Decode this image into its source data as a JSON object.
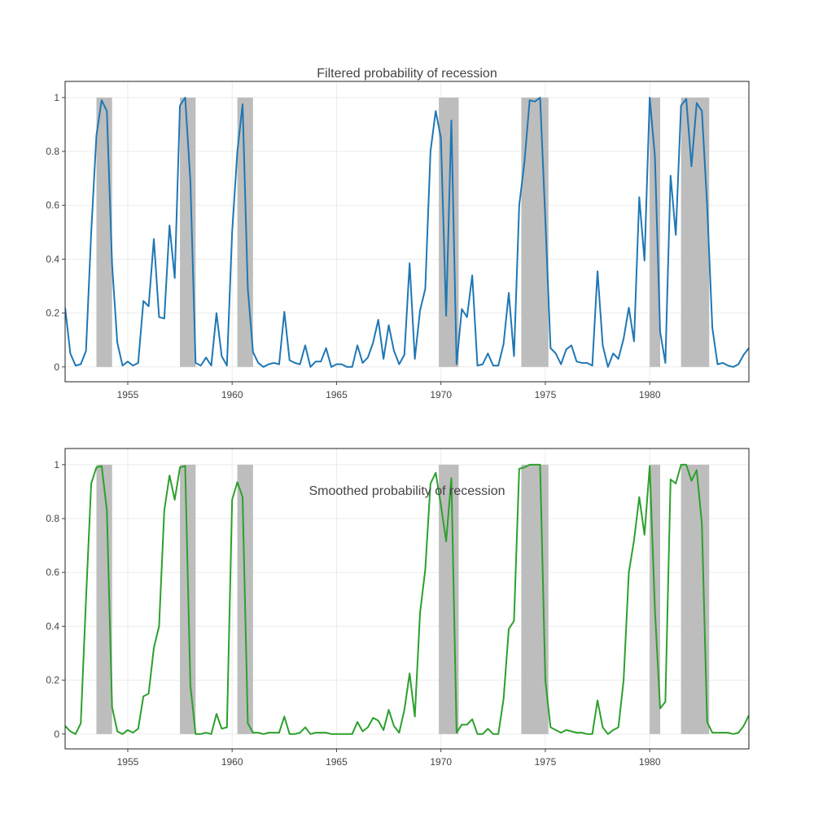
{
  "chart_data": [
    {
      "type": "line",
      "title": "Filtered probability of recession",
      "xlabel": "",
      "ylabel": "",
      "xlim": [
        1952.0,
        1984.75
      ],
      "ylim": [
        -0.055,
        1.06
      ],
      "x_ticks": [
        "1955",
        "1960",
        "1965",
        "1970",
        "1975",
        "1980"
      ],
      "y_ticks": [
        "0",
        "0.2",
        "0.4",
        "0.6",
        "0.8",
        "1"
      ],
      "grid": true,
      "legend": "none",
      "line_color": "#1f77b4",
      "shade_color": "#bdbdbd",
      "recessions": [
        [
          1953.5,
          1954.25
        ],
        [
          1957.5,
          1958.25
        ],
        [
          1960.25,
          1961.0
        ],
        [
          1969.9,
          1970.85
        ],
        [
          1973.85,
          1975.15
        ],
        [
          1980.0,
          1980.5
        ],
        [
          1981.5,
          1982.85
        ]
      ],
      "series": [
        {
          "start": 1952.0,
          "step": 0.25,
          "values": [
            0.22,
            0.05,
            0.005,
            0.01,
            0.06,
            0.5,
            0.86,
            0.99,
            0.95,
            0.38,
            0.09,
            0.005,
            0.02,
            0.005,
            0.015,
            0.245,
            0.225,
            0.475,
            0.185,
            0.18,
            0.525,
            0.33,
            0.97,
            1.0,
            0.69,
            0.015,
            0.005,
            0.035,
            0.005,
            0.2,
            0.04,
            0.005,
            0.5,
            0.8,
            0.975,
            0.29,
            0.055,
            0.015,
            0.0,
            0.01,
            0.015,
            0.01,
            0.205,
            0.025,
            0.015,
            0.01,
            0.08,
            0.0,
            0.02,
            0.02,
            0.07,
            0.0,
            0.01,
            0.01,
            0.0,
            0.0,
            0.08,
            0.015,
            0.035,
            0.09,
            0.175,
            0.03,
            0.155,
            0.06,
            0.01,
            0.045,
            0.385,
            0.03,
            0.21,
            0.29,
            0.8,
            0.95,
            0.85,
            0.19,
            0.915,
            0.01,
            0.215,
            0.185,
            0.34,
            0.005,
            0.01,
            0.05,
            0.005,
            0.005,
            0.085,
            0.275,
            0.04,
            0.6,
            0.76,
            0.99,
            0.985,
            1.0,
            0.55,
            0.07,
            0.05,
            0.01,
            0.065,
            0.08,
            0.02,
            0.015,
            0.015,
            0.005,
            0.355,
            0.08,
            0.0,
            0.05,
            0.03,
            0.105,
            0.22,
            0.095,
            0.63,
            0.395,
            1.0,
            0.78,
            0.13,
            0.015,
            0.71,
            0.49,
            0.97,
            0.995,
            0.745,
            0.98,
            0.95,
            0.6,
            0.145,
            0.01,
            0.015,
            0.005,
            0.0,
            0.01,
            0.045,
            0.07
          ]
        }
      ]
    },
    {
      "type": "line",
      "title": "Smoothed probability of recession",
      "xlabel": "",
      "ylabel": "",
      "xlim": [
        1952.0,
        1984.75
      ],
      "ylim": [
        -0.055,
        1.06
      ],
      "x_ticks": [
        "1955",
        "1960",
        "1965",
        "1970",
        "1975",
        "1980"
      ],
      "y_ticks": [
        "0",
        "0.2",
        "0.4",
        "0.6",
        "0.8",
        "1"
      ],
      "grid": true,
      "legend": "none",
      "line_color": "#2ca02c",
      "shade_color": "#bdbdbd",
      "recessions": [
        [
          1953.5,
          1954.25
        ],
        [
          1957.5,
          1958.25
        ],
        [
          1960.25,
          1961.0
        ],
        [
          1969.9,
          1970.85
        ],
        [
          1973.85,
          1975.15
        ],
        [
          1980.0,
          1980.5
        ],
        [
          1981.5,
          1982.85
        ]
      ],
      "series": [
        {
          "start": 1952.0,
          "step": 0.25,
          "values": [
            0.03,
            0.01,
            0.0,
            0.04,
            0.5,
            0.93,
            0.99,
            0.995,
            0.83,
            0.1,
            0.01,
            0.0,
            0.015,
            0.005,
            0.02,
            0.14,
            0.15,
            0.32,
            0.4,
            0.83,
            0.96,
            0.87,
            0.99,
            0.995,
            0.18,
            0.0,
            0.0,
            0.005,
            0.0,
            0.075,
            0.02,
            0.025,
            0.87,
            0.935,
            0.88,
            0.04,
            0.005,
            0.005,
            0.0,
            0.005,
            0.005,
            0.005,
            0.065,
            0.0,
            0.0,
            0.005,
            0.025,
            0.0,
            0.005,
            0.005,
            0.005,
            0.0,
            0.0,
            0.0,
            0.0,
            0.0,
            0.045,
            0.01,
            0.025,
            0.06,
            0.05,
            0.015,
            0.09,
            0.03,
            0.005,
            0.09,
            0.225,
            0.065,
            0.45,
            0.61,
            0.93,
            0.97,
            0.85,
            0.715,
            0.95,
            0.005,
            0.035,
            0.035,
            0.055,
            0.0,
            0.0,
            0.02,
            0.0,
            0.0,
            0.13,
            0.39,
            0.42,
            0.985,
            0.99,
            1.0,
            1.0,
            1.0,
            0.2,
            0.025,
            0.015,
            0.005,
            0.015,
            0.01,
            0.005,
            0.005,
            0.0,
            0.0,
            0.125,
            0.025,
            0.0,
            0.015,
            0.025,
            0.2,
            0.6,
            0.72,
            0.88,
            0.74,
            0.995,
            0.46,
            0.095,
            0.12,
            0.945,
            0.93,
            1.0,
            1.0,
            0.94,
            0.98,
            0.78,
            0.045,
            0.005,
            0.005,
            0.005,
            0.005,
            0.0,
            0.005,
            0.03,
            0.07
          ]
        }
      ]
    }
  ]
}
